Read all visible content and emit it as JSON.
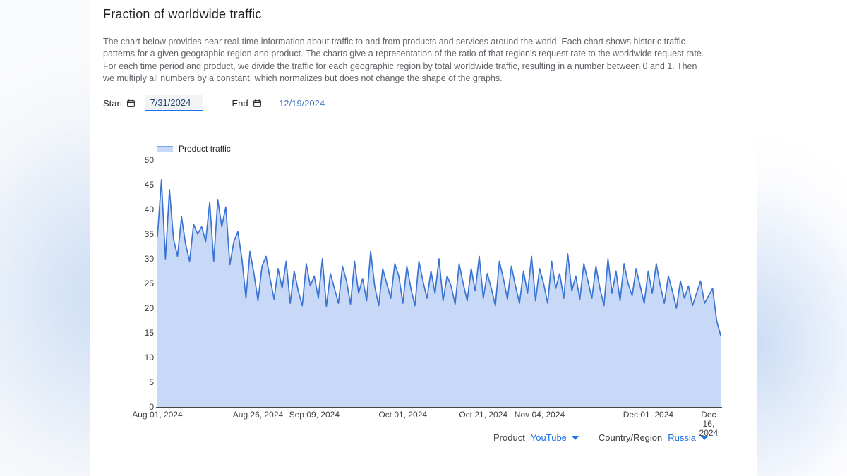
{
  "page": {
    "title": "Fraction of worldwide traffic",
    "description": "The chart below provides near real-time information about traffic to and from products and services around the world. Each chart shows historic traffic patterns for a given geographic region and product. The charts give a representation of the ratio of that region's request rate to the worldwide request rate. For each time period and product, we divide the traffic for each geographic region by total worldwide traffic, resulting in a number between 0 and 1. Then we multiply all numbers by a constant, which normalizes but does not change the shape of the graphs."
  },
  "date_controls": {
    "start_label": "Start",
    "start_value": "7/31/2024",
    "end_label": "End",
    "end_value": "12/19/2024"
  },
  "legend": {
    "label": "Product traffic"
  },
  "controls": {
    "product_label": "Product",
    "product_value": "YouTube",
    "country_label": "Country/Region",
    "country_value": "Russia"
  },
  "icons": {
    "start_calendar": "calendar-icon",
    "end_calendar": "calendar-icon",
    "product_dropdown": "arrow-drop-down-icon",
    "country_dropdown": "arrow-drop-down-icon"
  },
  "colors": {
    "line": "#3b73d3",
    "fill": "#c7d9f7",
    "accent_blue": "#1a73e8",
    "axis": "#454545",
    "text_primary": "#202124",
    "text_secondary": "#5f6368"
  },
  "chart_data": {
    "type": "area",
    "title": "Product traffic",
    "xlabel": "",
    "ylabel": "",
    "frequency": "daily",
    "x_start_date": "Aug 01, 2024",
    "x_end_date": "Dec 19, 2024",
    "ylim": [
      0,
      50
    ],
    "yticks": [
      0,
      5,
      10,
      15,
      20,
      25,
      30,
      35,
      40,
      45,
      50
    ],
    "grid": false,
    "legend_position": "top-left",
    "xticks": [
      {
        "label": "Aug 01, 2024",
        "day": 0
      },
      {
        "label": "Aug 26, 2024",
        "day": 25
      },
      {
        "label": "Sep 09, 2024",
        "day": 39
      },
      {
        "label": "Oct 01, 2024",
        "day": 61
      },
      {
        "label": "Oct 21, 2024",
        "day": 81
      },
      {
        "label": "Nov 04, 2024",
        "day": 95
      },
      {
        "label": "Dec 01, 2024",
        "day": 122
      },
      {
        "label": "Dec 16,\n2024",
        "day": 137
      }
    ],
    "values": [
      34.5,
      46,
      30,
      44,
      34,
      30.5,
      38.5,
      33,
      29.5,
      37,
      35,
      36.5,
      33.5,
      41.5,
      29.5,
      42,
      36.5,
      40.5,
      28.8,
      33.5,
      35.5,
      30,
      22,
      31.5,
      27,
      21.5,
      28.5,
      30.5,
      26,
      21.8,
      28,
      24,
      29.5,
      21,
      27.5,
      23.5,
      20.5,
      29,
      24.5,
      26.5,
      22,
      30,
      20.3,
      27,
      24,
      21,
      28.5,
      25.5,
      20.8,
      29.5,
      23,
      26,
      21.5,
      31.5,
      24.5,
      20.5,
      28,
      25,
      22,
      29,
      26.5,
      21,
      28.5,
      24,
      20.5,
      29.5,
      25.5,
      22,
      27.5,
      23,
      30,
      21.5,
      26.5,
      24.5,
      20.8,
      29,
      25,
      21.5,
      28,
      23.5,
      30.5,
      22,
      27,
      24,
      20.5,
      29.5,
      26,
      21.8,
      28.5,
      24.5,
      21,
      27.5,
      23,
      30.5,
      21.5,
      28,
      25,
      21,
      29.5,
      24,
      27,
      22,
      31,
      23.5,
      26.5,
      21.8,
      29,
      25.5,
      22,
      28.5,
      24,
      20.5,
      30,
      23,
      27.5,
      21.5,
      29,
      25,
      22.5,
      28,
      24.5,
      21,
      27.5,
      23,
      29,
      24.5,
      21,
      26.5,
      23.5,
      20,
      25.5,
      22,
      24.5,
      20.5,
      23,
      25.5,
      21,
      22.5,
      24,
      17.5,
      14.5
    ]
  }
}
